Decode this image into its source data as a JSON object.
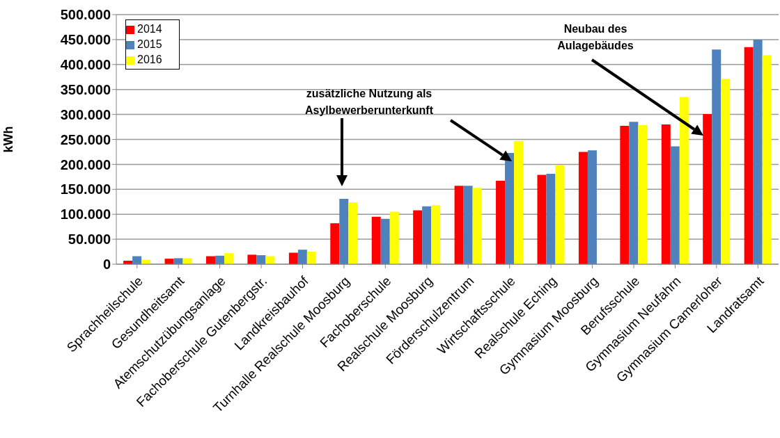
{
  "chart_data": {
    "type": "bar",
    "ylabel": "kWh",
    "categories": [
      "Sprachheilschule",
      "Gesundheitsamt",
      "Atemschutzübungsanlage",
      "Fachoberschule Gutenbergstr.",
      "Landkreisbauhof",
      "Turnhalle Realschule Moosburg",
      "Fachoberschule",
      "Realschule Moosburg",
      "Förderschulzentrum",
      "Wirtschaftsschule",
      "Realschule Eching",
      "Gymnasium Moosburg",
      "Berufsschule",
      "Gymnasium Neufahrn",
      "Gymnasium Camerloher",
      "Landratsamt"
    ],
    "series": [
      {
        "name": "2014",
        "color": "#ff0000",
        "values": [
          7000,
          11000,
          16000,
          19000,
          23000,
          82000,
          95000,
          108000,
          157000,
          167000,
          179000,
          225000,
          277000,
          280000,
          301000,
          435000
        ]
      },
      {
        "name": "2015",
        "color": "#4f81bd",
        "values": [
          16000,
          12000,
          17000,
          18000,
          29000,
          131000,
          91000,
          116000,
          157000,
          223000,
          181000,
          228000,
          285000,
          236000,
          430000,
          450000
        ]
      },
      {
        "name": "2016",
        "color": "#ffff00",
        "values": [
          9000,
          12000,
          22000,
          16000,
          25000,
          124000,
          105000,
          118000,
          153000,
          247000,
          199000,
          null,
          279000,
          335000,
          371000,
          419000
        ]
      }
    ],
    "ylim": [
      0,
      500000
    ],
    "yticks": [
      {
        "value": 0,
        "label": "0"
      },
      {
        "value": 50000,
        "label": "50.000"
      },
      {
        "value": 100000,
        "label": "100.000"
      },
      {
        "value": 150000,
        "label": "150.000"
      },
      {
        "value": 200000,
        "label": "200.000"
      },
      {
        "value": 250000,
        "label": "250.000"
      },
      {
        "value": 300000,
        "label": "300.000"
      },
      {
        "value": 350000,
        "label": "350.000"
      },
      {
        "value": 400000,
        "label": "400.000"
      },
      {
        "value": 450000,
        "label": "450.000"
      },
      {
        "value": 500000,
        "label": "500.000"
      }
    ],
    "grid": "y",
    "legend": "top left",
    "annotations": [
      "zusätzliche Nutzung als\nAsylbewerberunterkunft",
      "Neubau des\nAulagebäudes"
    ]
  }
}
